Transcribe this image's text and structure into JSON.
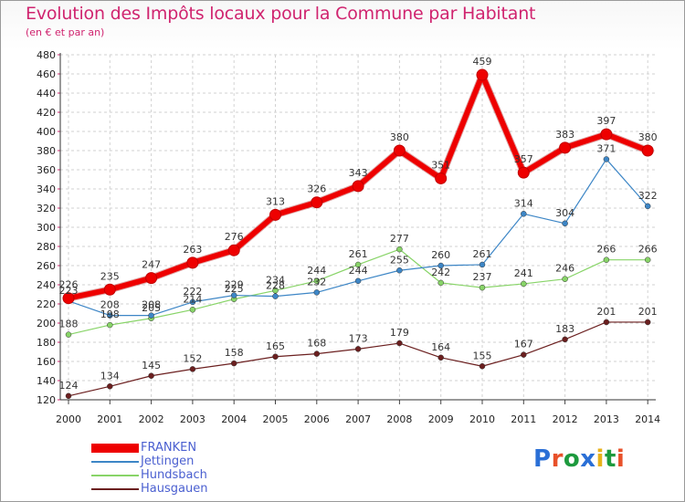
{
  "title": "Evolution des Impôts locaux pour la Commune par Habitant",
  "subtitle": "(en € et par an)",
  "brand": {
    "text": "Proxiti",
    "colors": [
      "#2a6fd6",
      "#e8512a",
      "#1d9a3e",
      "#2a6fd6",
      "#e8b21a",
      "#1d9a3e",
      "#e8512a"
    ]
  },
  "chart_data": {
    "type": "line",
    "title": "Evolution des Impôts locaux pour la Commune par Habitant",
    "ylabel": "(en € et par an)",
    "xlabel": "",
    "x": [
      "2000",
      "2001",
      "2002",
      "2003",
      "2004",
      "2005",
      "2006",
      "2007",
      "2008",
      "2009",
      "2010",
      "2011",
      "2012",
      "2013",
      "2014"
    ],
    "ylim": [
      120,
      480
    ],
    "yticks": [
      120,
      140,
      160,
      180,
      200,
      220,
      240,
      260,
      280,
      300,
      320,
      340,
      360,
      380,
      400,
      420,
      440,
      460,
      480
    ],
    "grid": true,
    "legend_position": "bottom-left",
    "series": [
      {
        "name": "FRANKEN",
        "color": "#ee0000",
        "width": 6,
        "marker": 6,
        "values": [
          226,
          235,
          247,
          263,
          276,
          313,
          326,
          343,
          380,
          351,
          459,
          357,
          383,
          397,
          380
        ],
        "labels": [
          "226",
          "235",
          "247",
          "263",
          "276",
          "313",
          "326",
          "343",
          "380",
          "351",
          "459",
          "357",
          "383",
          "397",
          "380"
        ]
      },
      {
        "name": "Jettingen",
        "color": "#3d86c6",
        "width": 1.2,
        "marker": 3,
        "values": [
          223,
          208,
          208,
          222,
          229,
          228,
          232,
          244,
          255,
          260,
          261,
          314,
          304,
          371,
          322
        ],
        "labels": [
          "223",
          "208",
          "208",
          "222",
          "229",
          "228",
          "232",
          "244",
          "255",
          "260",
          "261",
          "314",
          "304",
          "371",
          "322"
        ]
      },
      {
        "name": "Hundsbach",
        "color": "#88d468",
        "width": 1.2,
        "marker": 3,
        "values": [
          188,
          198,
          205,
          214,
          225,
          234,
          244,
          261,
          277,
          242,
          237,
          241,
          246,
          266,
          266
        ],
        "labels": [
          "188",
          "198",
          "205",
          "214",
          "225",
          "234",
          "244",
          "261",
          "277",
          "242",
          "237",
          "241",
          "246",
          "266",
          "266"
        ]
      },
      {
        "name": "Hausgauen",
        "color": "#6b1f1f",
        "width": 1.2,
        "marker": 3,
        "values": [
          124,
          134,
          145,
          152,
          158,
          165,
          168,
          173,
          179,
          164,
          155,
          167,
          183,
          201,
          201
        ],
        "labels": [
          "124",
          "134",
          "145",
          "152",
          "158",
          "165",
          "168",
          "173",
          "179",
          "164",
          "155",
          "167",
          "183",
          "201",
          "201"
        ]
      }
    ]
  }
}
